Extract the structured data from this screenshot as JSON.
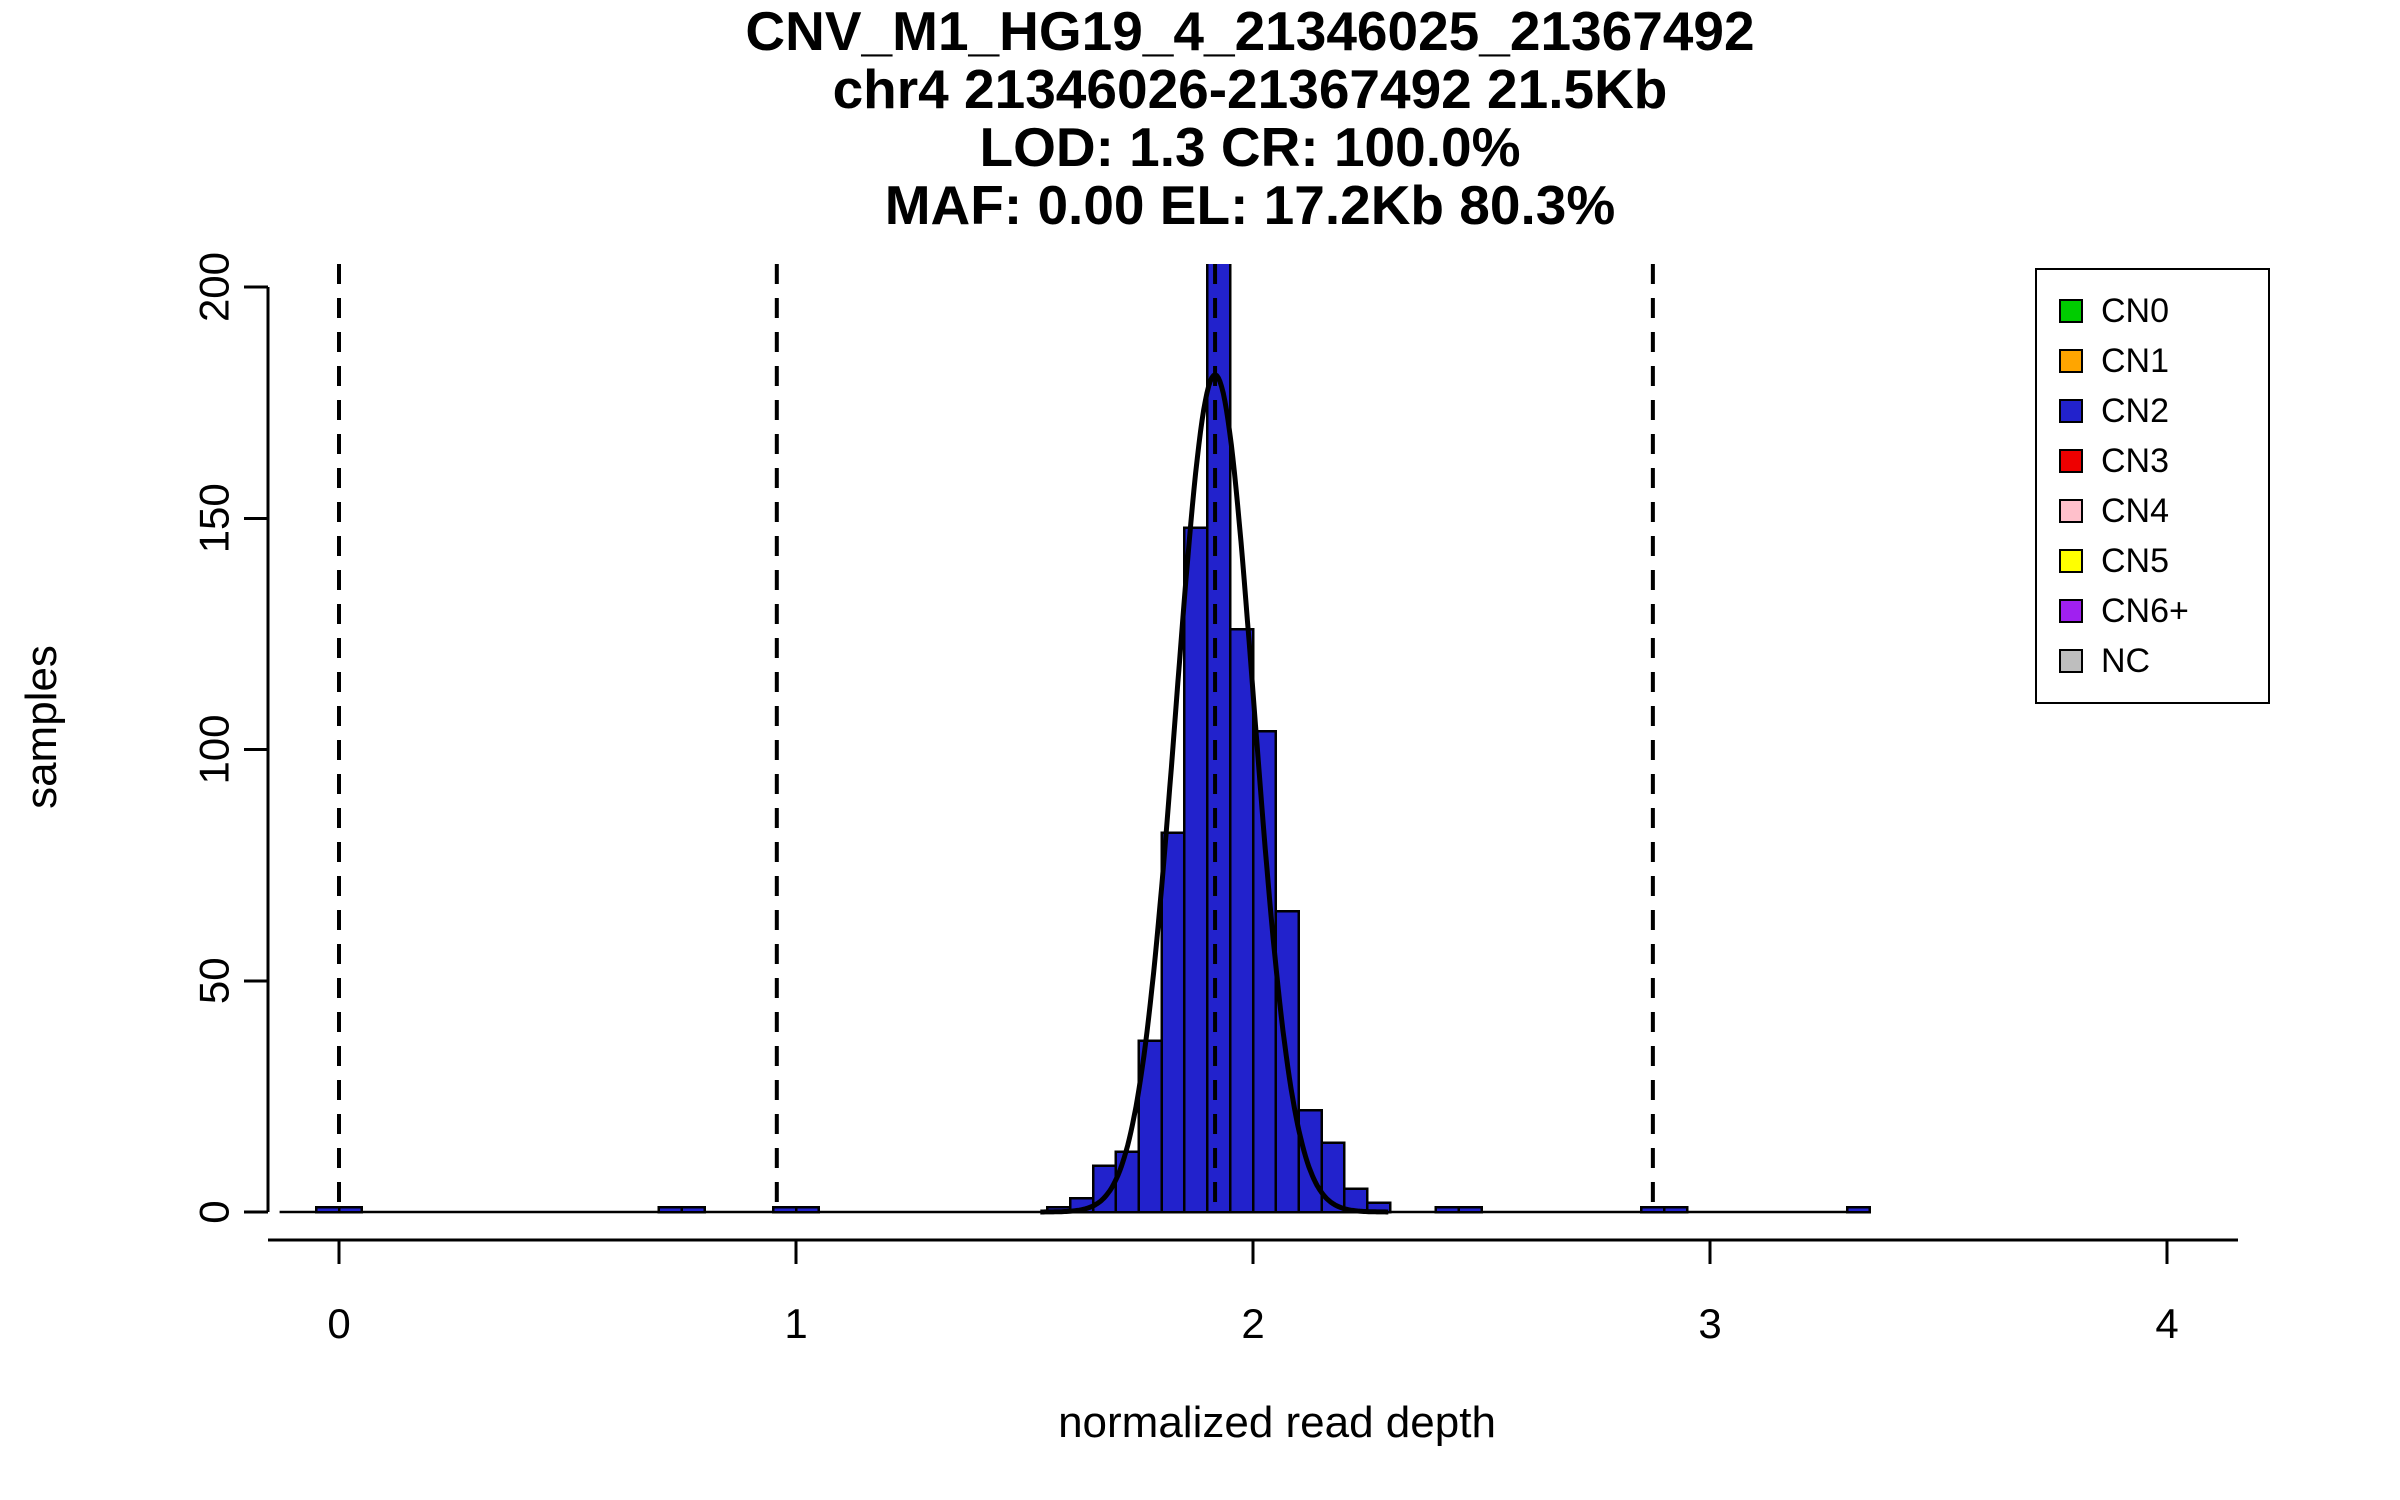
{
  "title": {
    "lines": [
      "CNV_M1_HG19_4_21346025_21367492",
      "chr4 21346026-21367492 21.5Kb",
      "LOD: 1.3 CR: 100.0%",
      "MAF: 0.00 EL: 17.2Kb 80.3%"
    ]
  },
  "chart_data": {
    "type": "bar",
    "subtype": "histogram",
    "title": "CNV_M1_HG19_4_21346025_21367492 chr4 21346026-21367492 21.5Kb LOD: 1.3 CR: 100.0% MAF: 0.00 EL: 17.2Kb 80.3%",
    "xlabel": "normalized read depth",
    "ylabel": "samples",
    "xlim": [
      -0.155,
      4.155
    ],
    "ylim": [
      0,
      200
    ],
    "x_ticks": [
      0,
      1,
      2,
      3,
      4
    ],
    "y_ticks": [
      0,
      50,
      100,
      150,
      200
    ],
    "grid": false,
    "bar_color": "#2222cc",
    "bar_edge_color": "#000000",
    "bin_width": 0.05,
    "bins": [
      {
        "x": -0.05,
        "count": 1
      },
      {
        "x": 0.0,
        "count": 1
      },
      {
        "x": 0.7,
        "count": 1
      },
      {
        "x": 0.75,
        "count": 1
      },
      {
        "x": 0.95,
        "count": 1
      },
      {
        "x": 1.0,
        "count": 1
      },
      {
        "x": 1.55,
        "count": 1
      },
      {
        "x": 1.6,
        "count": 3
      },
      {
        "x": 1.65,
        "count": 10
      },
      {
        "x": 1.7,
        "count": 13
      },
      {
        "x": 1.75,
        "count": 37
      },
      {
        "x": 1.8,
        "count": 82
      },
      {
        "x": 1.85,
        "count": 148
      },
      {
        "x": 1.9,
        "count": 212
      },
      {
        "x": 1.95,
        "count": 126
      },
      {
        "x": 2.0,
        "count": 104
      },
      {
        "x": 2.05,
        "count": 65
      },
      {
        "x": 2.1,
        "count": 22
      },
      {
        "x": 2.15,
        "count": 15
      },
      {
        "x": 2.2,
        "count": 5
      },
      {
        "x": 2.25,
        "count": 2
      },
      {
        "x": 2.4,
        "count": 1
      },
      {
        "x": 2.45,
        "count": 1
      },
      {
        "x": 2.85,
        "count": 1
      },
      {
        "x": 2.9,
        "count": 1
      },
      {
        "x": 3.3,
        "count": 1
      }
    ],
    "fit_curve": {
      "mean": 1.917,
      "sd": 0.085,
      "peak": 181,
      "color": "#000000"
    },
    "dashed_lines": {
      "x": [
        0,
        0.958,
        1.917,
        2.875
      ],
      "color": "#000000"
    },
    "baseline": {
      "x_start": -0.13,
      "x_end": 3.35
    },
    "legend": {
      "position": "top-right",
      "items": [
        {
          "label": "CN0",
          "color": "#00cc00"
        },
        {
          "label": "CN1",
          "color": "#ffa500"
        },
        {
          "label": "CN2",
          "color": "#2222cc"
        },
        {
          "label": "CN3",
          "color": "#ee0000"
        },
        {
          "label": "CN4",
          "color": "#ffc0cb"
        },
        {
          "label": "CN5",
          "color": "#ffff00"
        },
        {
          "label": "CN6+",
          "color": "#a020f0"
        },
        {
          "label": "NC",
          "color": "#bebebe"
        }
      ]
    }
  }
}
